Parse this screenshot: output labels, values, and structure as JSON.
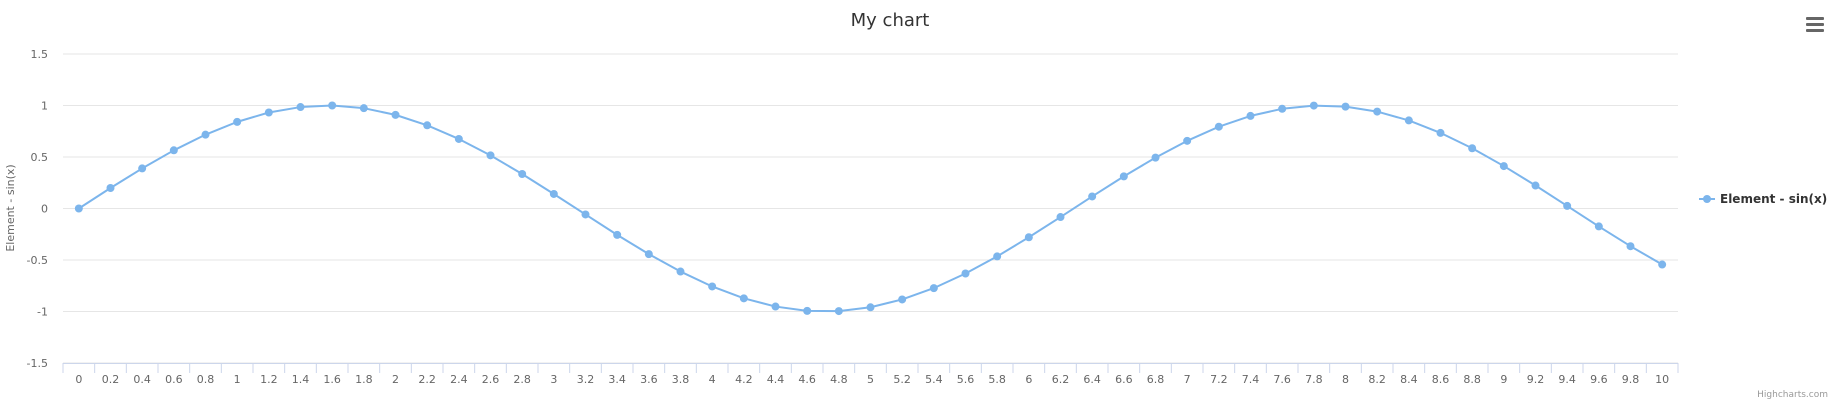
{
  "chart_data": {
    "type": "line",
    "title": "My chart",
    "ylabel": "Element - sin(x)",
    "xlabel": "",
    "ylim": [
      -1.5,
      1.5
    ],
    "yticks": [
      "1.5",
      "1",
      "0.5",
      "0",
      "-0.5",
      "-1",
      "-1.5"
    ],
    "x": [
      0,
      0.2,
      0.4,
      0.6,
      0.8,
      1,
      1.2,
      1.4,
      1.6,
      1.8,
      2,
      2.2,
      2.4,
      2.6,
      2.8,
      3,
      3.2,
      3.4,
      3.6,
      3.8,
      4,
      4.2,
      4.4,
      4.6,
      4.8,
      5,
      5.2,
      5.4,
      5.6,
      5.8,
      6,
      6.2,
      6.4,
      6.6,
      6.8,
      7,
      7.2,
      7.4,
      7.6,
      7.8,
      8,
      8.2,
      8.4,
      8.6,
      8.8,
      9,
      9.2,
      9.4,
      9.6,
      9.8,
      10
    ],
    "xticks": [
      "0",
      "0.2",
      "0.4",
      "0.6",
      "0.8",
      "1",
      "1.2",
      "1.4",
      "1.6",
      "1.8",
      "2",
      "2.2",
      "2.4",
      "2.6",
      "2.8",
      "3",
      "3.2",
      "3.4",
      "3.6",
      "3.8",
      "4",
      "4.2",
      "4.4",
      "4.6",
      "4.8",
      "5",
      "5.2",
      "5.4",
      "5.6",
      "5.8",
      "6",
      "6.2",
      "6.4",
      "6.6",
      "6.8",
      "7",
      "7.2",
      "7.4",
      "7.6",
      "7.8",
      "8",
      "8.2",
      "8.4",
      "8.6",
      "8.8",
      "9",
      "9.2",
      "9.4",
      "9.6",
      "9.8",
      "10"
    ],
    "series": [
      {
        "name": "Element - sin(x)",
        "color": "#7cb5ec",
        "values": [
          0,
          0.199,
          0.389,
          0.565,
          0.717,
          0.841,
          0.932,
          0.985,
          1.0,
          0.974,
          0.909,
          0.808,
          0.675,
          0.516,
          0.335,
          0.141,
          -0.058,
          -0.256,
          -0.443,
          -0.612,
          -0.757,
          -0.872,
          -0.952,
          -0.994,
          -0.996,
          -0.959,
          -0.883,
          -0.773,
          -0.631,
          -0.465,
          -0.279,
          -0.083,
          0.117,
          0.312,
          0.494,
          0.657,
          0.794,
          0.899,
          0.968,
          0.999,
          0.989,
          0.941,
          0.855,
          0.734,
          0.585,
          0.412,
          0.223,
          0.025,
          -0.174,
          -0.366,
          -0.544
        ]
      }
    ],
    "grid": true,
    "legend_position": "right"
  },
  "credits": "Highcharts.com",
  "menu_icon": "hamburger-menu-icon"
}
